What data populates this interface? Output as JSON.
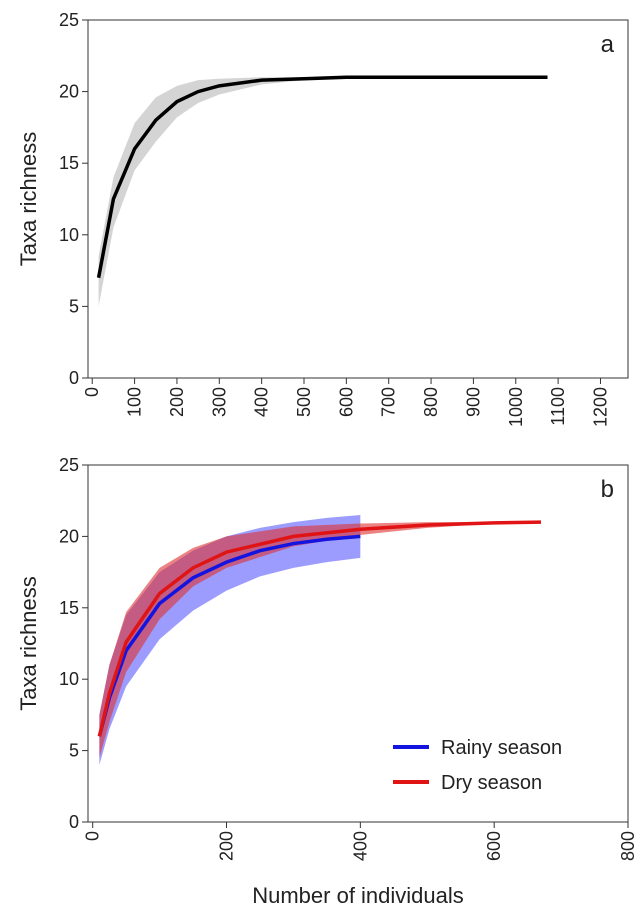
{
  "chart_data": [
    {
      "type": "line",
      "label": "a",
      "ylabel": "Taxa richness",
      "xlim": [
        -10,
        1265
      ],
      "ylim": [
        0,
        25
      ],
      "xticks": [
        0,
        100,
        200,
        300,
        400,
        500,
        600,
        700,
        800,
        900,
        1000,
        1100,
        1200
      ],
      "yticks": [
        0,
        5,
        10,
        15,
        20,
        25
      ],
      "series": [
        {
          "color": "#000000",
          "band_color": "#d4d4d4",
          "x": [
            15,
            50,
            100,
            150,
            200,
            250,
            300,
            400,
            500,
            600,
            700,
            800,
            900,
            1000,
            1075
          ],
          "values": [
            7,
            12.5,
            16,
            18,
            19.3,
            20,
            20.4,
            20.8,
            20.9,
            21,
            21,
            21,
            21,
            21,
            21
          ],
          "lower": [
            5,
            10.5,
            14.5,
            16.5,
            18.2,
            19.2,
            19.8,
            20.5,
            20.8,
            20.9,
            21,
            21,
            21,
            21,
            21
          ],
          "upper": [
            8.5,
            14,
            17.8,
            19.6,
            20.4,
            20.8,
            20.9,
            21,
            21,
            21,
            21,
            21,
            21,
            21,
            21
          ]
        }
      ]
    },
    {
      "type": "line",
      "label": "b",
      "ylabel": "Taxa richness",
      "xlabel": "Number of individuals",
      "xlim": [
        -7,
        800
      ],
      "ylim": [
        0,
        25
      ],
      "xticks": [
        0,
        200,
        400,
        600,
        800
      ],
      "yticks": [
        0,
        5,
        10,
        15,
        20,
        25
      ],
      "legend": "lower right",
      "series": [
        {
          "name": "Rainy season",
          "color": "#1414e0",
          "band_color": "#5a5aff",
          "x": [
            10,
            25,
            50,
            100,
            150,
            200,
            250,
            300,
            350,
            400
          ],
          "values": [
            6,
            8.7,
            12,
            15.3,
            17.1,
            18.2,
            19,
            19.5,
            19.8,
            20
          ],
          "lower": [
            4,
            6.5,
            9.5,
            12.8,
            14.8,
            16.2,
            17.2,
            17.8,
            18.2,
            18.5
          ],
          "upper": [
            7.5,
            11,
            14.5,
            17.5,
            19,
            20,
            20.6,
            21,
            21.3,
            21.5
          ]
        },
        {
          "name": "Dry season",
          "color": "#e01414",
          "band_color": "#e03030",
          "x": [
            10,
            25,
            50,
            100,
            150,
            200,
            300,
            400,
            500,
            600,
            670
          ],
          "values": [
            6,
            9,
            12.6,
            16,
            17.8,
            18.9,
            20,
            20.5,
            20.8,
            20.95,
            21
          ],
          "lower": [
            4.5,
            7,
            10.5,
            14.2,
            16.5,
            17.8,
            19.3,
            20.1,
            20.6,
            20.9,
            21
          ],
          "upper": [
            7.5,
            11,
            14.7,
            17.8,
            19.2,
            20,
            20.7,
            20.9,
            21,
            21,
            21
          ]
        }
      ]
    }
  ]
}
